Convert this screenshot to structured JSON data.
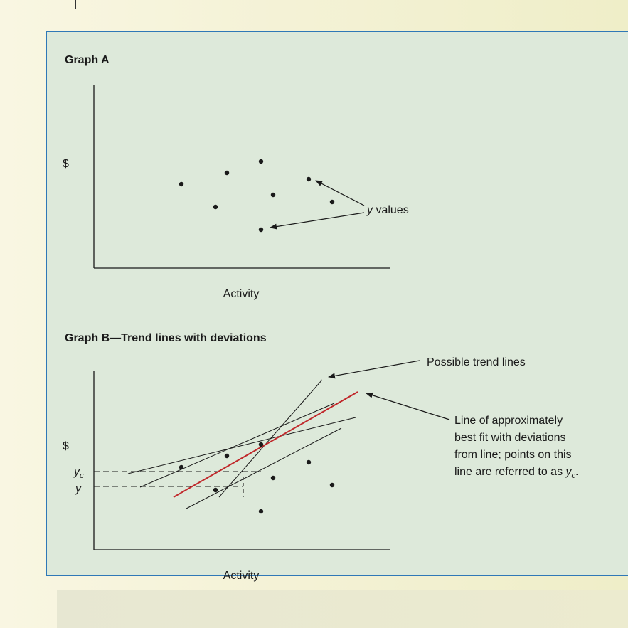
{
  "graph_a": {
    "title": "Graph A",
    "y_axis_label": "$",
    "x_axis_label": "Activity",
    "annotation": {
      "italic": "y",
      "rest": " values"
    }
  },
  "graph_b": {
    "title": "Graph B—Trend lines with deviations",
    "y_axis_label": "$",
    "x_axis_label": "Activity",
    "yc_label": {
      "main": "y",
      "sub": "c"
    },
    "y_label": "y",
    "possible_trend_lines": "Possible trend lines",
    "best_fit_lines": [
      "Line of approximately",
      "best fit with deviations",
      "from line; points on this"
    ],
    "best_fit_last": {
      "prefix": "line are referred to as ",
      "main": "y",
      "sub": "c",
      "suffix": "."
    }
  },
  "colors": {
    "panel_border": "#2f78b7",
    "panel_fill": "#dde9da",
    "best_fit_line": "#c0282b",
    "ink": "#1a1a1a"
  }
}
